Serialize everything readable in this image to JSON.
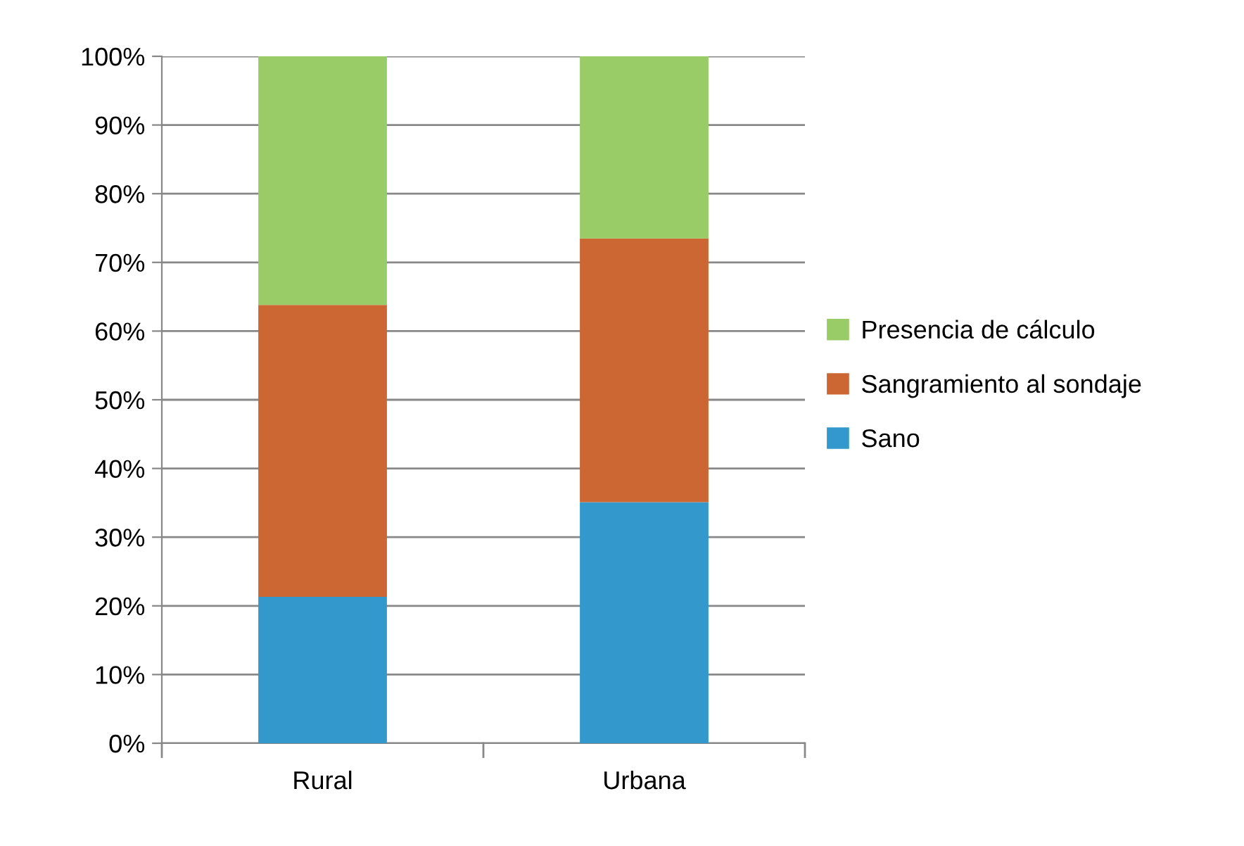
{
  "chart_data": {
    "type": "bar",
    "stacked": true,
    "categories": [
      "Rural",
      "Urbana"
    ],
    "series": [
      {
        "name": "Sano",
        "color": "#3399cc",
        "values": [
          21.3,
          35.1
        ]
      },
      {
        "name": "Sangramiento al sondaje",
        "color": "#cc6633",
        "values": [
          42.5,
          38.4
        ]
      },
      {
        "name": "Presencia de cálculo",
        "color": "#99cc66",
        "values": [
          36.2,
          26.5
        ]
      }
    ],
    "ylim": [
      0,
      100
    ],
    "yticks": [
      {
        "value": 0,
        "label": "0%"
      },
      {
        "value": 10,
        "label": "10%"
      },
      {
        "value": 20,
        "label": "20%"
      },
      {
        "value": 30,
        "label": "30%"
      },
      {
        "value": 40,
        "label": "40%"
      },
      {
        "value": 50,
        "label": "50%"
      },
      {
        "value": 60,
        "label": "60%"
      },
      {
        "value": 70,
        "label": "70%"
      },
      {
        "value": 80,
        "label": "80%"
      },
      {
        "value": 90,
        "label": "90%"
      },
      {
        "value": 100,
        "label": "100%"
      }
    ],
    "grid": "y",
    "legend": "right"
  }
}
